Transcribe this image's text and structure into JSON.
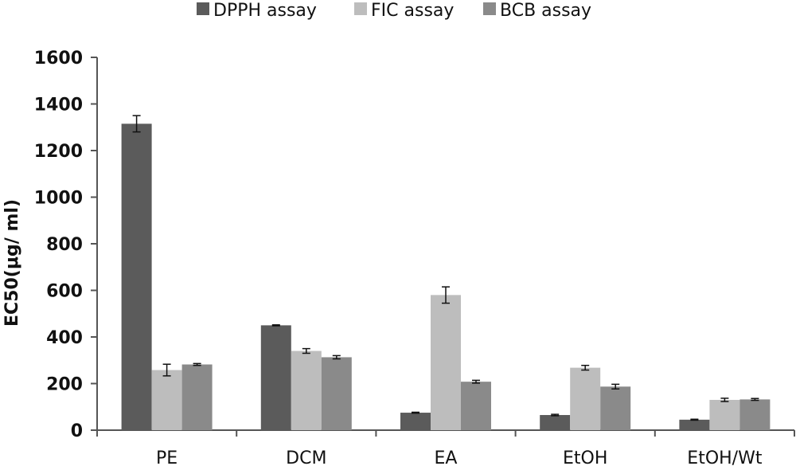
{
  "chart_data": {
    "type": "bar",
    "title": "",
    "xlabel": "",
    "ylabel": "EC50(μg/ ml)",
    "ylim": [
      0,
      1600
    ],
    "yticks": [
      0,
      200,
      400,
      600,
      800,
      1000,
      1200,
      1400,
      1600
    ],
    "grid": false,
    "legend_position": "top",
    "categories": [
      "PE",
      "DCM",
      "EA",
      "EtOH",
      "EtOH/Wt"
    ],
    "series": [
      {
        "name": "DPPH assay",
        "color": "#5b5b5b",
        "values": [
          1315,
          450,
          75,
          65,
          45
        ],
        "errors": [
          35,
          2,
          2,
          3,
          2
        ]
      },
      {
        "name": "FIC assay",
        "color": "#bdbdbd",
        "values": [
          258,
          340,
          580,
          268,
          130
        ],
        "errors": [
          25,
          10,
          35,
          10,
          7
        ]
      },
      {
        "name": "BCB assay",
        "color": "#8a8a8a",
        "values": [
          282,
          313,
          208,
          187,
          132
        ],
        "errors": [
          4,
          7,
          6,
          10,
          4
        ]
      }
    ]
  }
}
